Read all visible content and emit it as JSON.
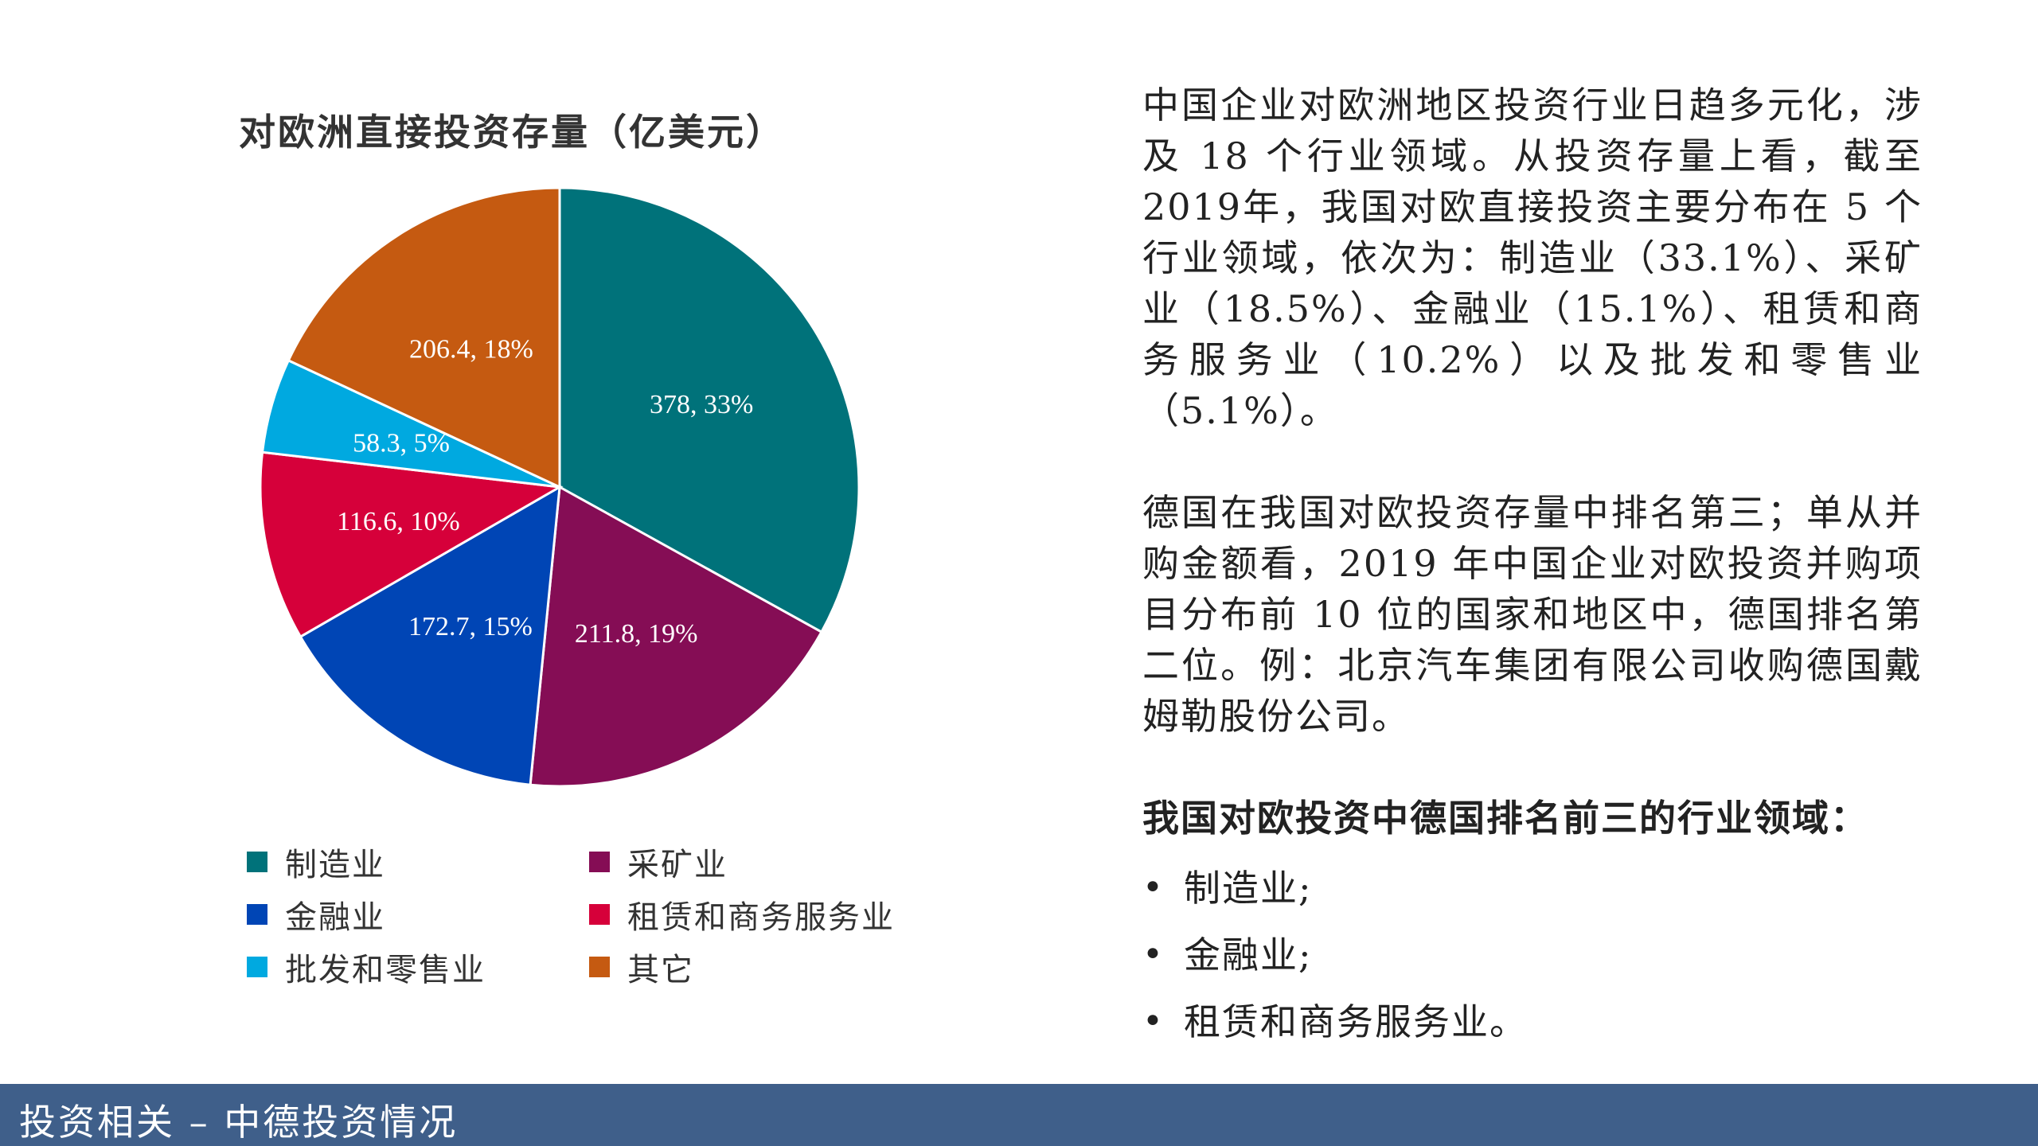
{
  "chart_data": {
    "type": "pie",
    "title": "对欧洲直接投资存量（亿美元）",
    "categories": [
      "制造业",
      "采矿业",
      "金融业",
      "租赁和商务服务业",
      "批发和零售业",
      "其它"
    ],
    "values": [
      378,
      211.8,
      172.7,
      116.6,
      58.3,
      206.4
    ],
    "percent_labels": [
      "33%",
      "19%",
      "15%",
      "10%",
      "5%",
      "18%"
    ],
    "data_labels": [
      "378, 33%",
      "211.8, 19%",
      "172.7, 15%",
      "116.6, 10%",
      "58.3, 5%",
      "206.4, 18%"
    ],
    "colors": [
      "#00727a",
      "#850d55",
      "#0045b5",
      "#d6003a",
      "#00a9e0",
      "#c55a11"
    ],
    "legend_position": "bottom"
  },
  "text": {
    "para1": "中国企业对欧洲地区投资行业日趋多元化，涉及 18 个行业领域。从投资存量上看，截至2019年，我国对欧直接投资主要分布在 5 个行业领域，依次为：制造业（33.1%）、采矿业（18.5%）、金融业（15.1%）、租赁和商务服务业（10.2%）以及批发和零售业（5.1%）。",
    "para2": "德国在我国对欧投资存量中排名第三；单从并购金额看，2019 年中国企业对欧投资并购项目分布前 10 位的国家和地区中，德国排名第二位。例：北京汽车集团有限公司收购德国戴姆勒股份公司。",
    "list_heading": "我国对欧投资中德国排名前三的行业领域：",
    "bullet": "•",
    "list": [
      "制造业;",
      "金融业;",
      "租赁和商务服务业。"
    ]
  },
  "footer": {
    "text": "投资相关 – 中德投资情况",
    "color": "#3f5f8a"
  }
}
